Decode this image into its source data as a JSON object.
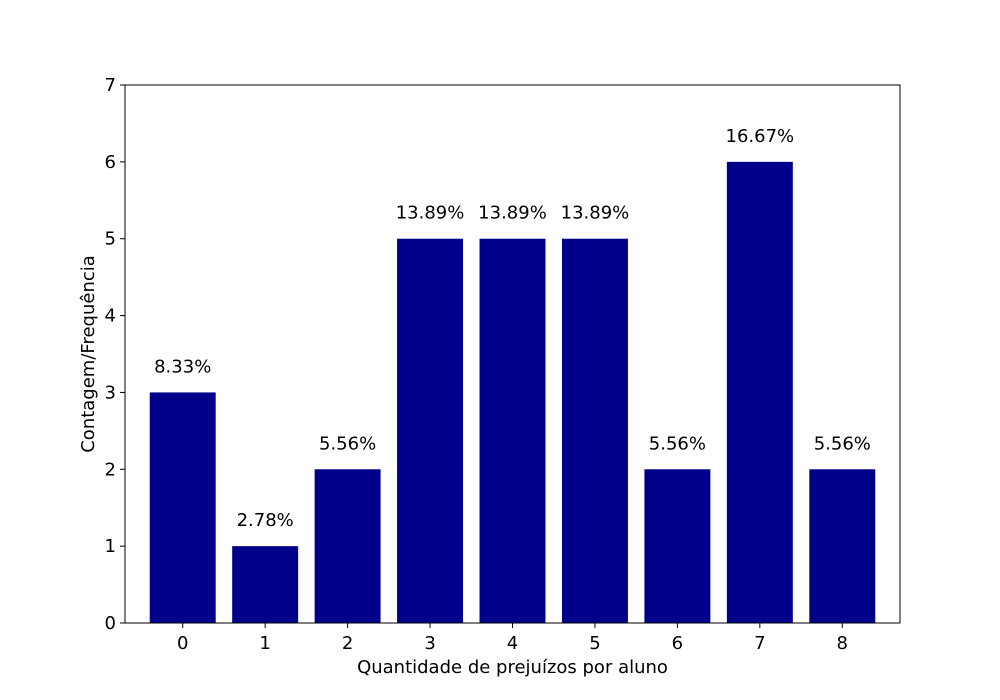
{
  "chart_data": {
    "type": "bar",
    "categories": [
      "0",
      "1",
      "2",
      "3",
      "4",
      "5",
      "6",
      "7",
      "8"
    ],
    "values": [
      3,
      1,
      2,
      5,
      5,
      5,
      2,
      6,
      2
    ],
    "bar_labels": [
      "8.33%",
      "2.78%",
      "5.56%",
      "13.89%",
      "13.89%",
      "13.89%",
      "5.56%",
      "16.67%",
      "5.56%"
    ],
    "title": "",
    "xlabel": "Quantidade de prejuízos por aluno",
    "ylabel": "Contagem/Frequência",
    "ylim": [
      0,
      7
    ],
    "yticks": [
      0,
      1,
      2,
      3,
      4,
      5,
      6,
      7
    ],
    "bar_color": "#00008b",
    "grid": false,
    "legend": "none"
  }
}
